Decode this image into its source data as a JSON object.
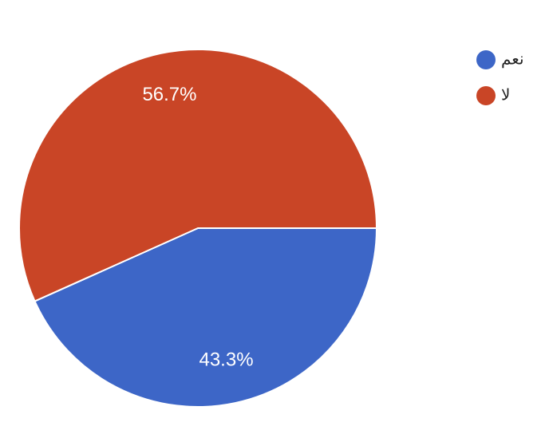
{
  "chart_data": {
    "type": "pie",
    "categories": [
      "نعم",
      "لا"
    ],
    "values": [
      43.3,
      56.7
    ],
    "value_labels": [
      "43.3%",
      "56.7%"
    ],
    "colors": [
      "#3d66c7",
      "#c94526"
    ],
    "legend": "top-right"
  }
}
